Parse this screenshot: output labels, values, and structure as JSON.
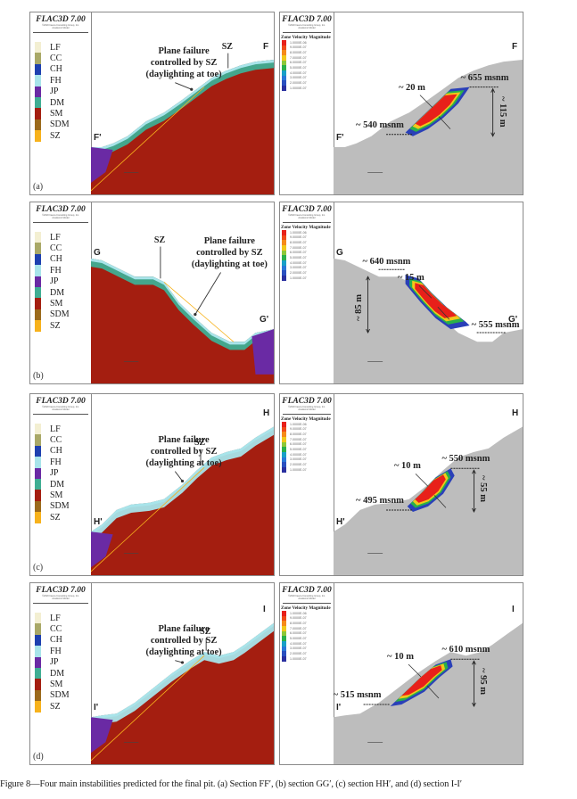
{
  "software_label": "FLAC3D 7.00",
  "copyright_lines": [
    "©2020 Itasca Consulting Group, Inc.",
    "Academic Model"
  ],
  "materials": [
    {
      "code": "LF",
      "color": "#f3efd2"
    },
    {
      "code": "CC",
      "color": "#a9a867"
    },
    {
      "code": "CH",
      "color": "#1e40b0"
    },
    {
      "code": "FH",
      "color": "#a8e4ea"
    },
    {
      "code": "JP",
      "color": "#6a2aa4"
    },
    {
      "code": "DM",
      "color": "#3fae93"
    },
    {
      "code": "SM",
      "color": "#a41e10"
    },
    {
      "code": "SDM",
      "color": "#9b6a1c"
    },
    {
      "code": "SZ",
      "color": "#f7b21c"
    }
  ],
  "velocity_legend": {
    "title": "Zone Velocity Magnitude",
    "levels": [
      "1.0000E-06",
      "9.0000E-07",
      "8.0000E-07",
      "7.0000E-07",
      "6.0000E-07",
      "5.0000E-07",
      "4.0000E-07",
      "3.0000E-07",
      "2.0000E-07",
      "1.0000E-07"
    ],
    "colors": [
      "#e8201a",
      "#f04a1a",
      "#f68a1a",
      "#f2c81a",
      "#8cc83a",
      "#2ab04a",
      "#1aa0c8",
      "#2a78d8",
      "#2a50c0",
      "#2a30a0"
    ]
  },
  "colors": {
    "host_rock": "#a41e10",
    "deformed_ground": "#bdbdbd",
    "sky": "#ffffff"
  },
  "panels": [
    {
      "id": "(a)",
      "section_start": "F'",
      "section_end": "F",
      "annotation": [
        "Plane failure",
        "controlled by SZ",
        "(daylighting at toe)"
      ],
      "sz_label": "SZ",
      "top_elev": "~ 655 msnm",
      "toe_elev": "~ 540 msnm",
      "height": "~ 115 m",
      "depth": "~ 20 m"
    },
    {
      "id": "(b)",
      "section_start": "G",
      "section_end": "G'",
      "annotation": [
        "Plane failure",
        "controlled by SZ",
        "(daylighting at toe)"
      ],
      "sz_label": "SZ",
      "top_elev": "~ 640 msnm",
      "toe_elev": "~ 555 msnm",
      "height": "~ 85 m",
      "depth": "~ 15 m"
    },
    {
      "id": "(c)",
      "section_start": "H'",
      "section_end": "H",
      "annotation": [
        "Plane failure",
        "controlled by  SZ",
        "(daylighting at toe)"
      ],
      "sz_label": "SZ",
      "top_elev": "~ 550 msnm",
      "toe_elev": "~ 495 msnm",
      "height": "~ 55 m",
      "depth": "~ 10 m"
    },
    {
      "id": "(d)",
      "section_start": "I'",
      "section_end": "I",
      "annotation": [
        "Plane failure",
        "controlled by SZ",
        "(daylighting at toe)"
      ],
      "sz_label": "SZ",
      "top_elev": "~ 610 msnm",
      "toe_elev": "~ 515 msnm",
      "height": "~ 95 m",
      "depth": "~ 10 m"
    }
  ],
  "caption": {
    "label": "Figure 8",
    "text": "—Four main instabilities predicted for the final pit. (a) Section FF′, (b) section GG′, (c) section HH′, and (d) section I-I′"
  }
}
